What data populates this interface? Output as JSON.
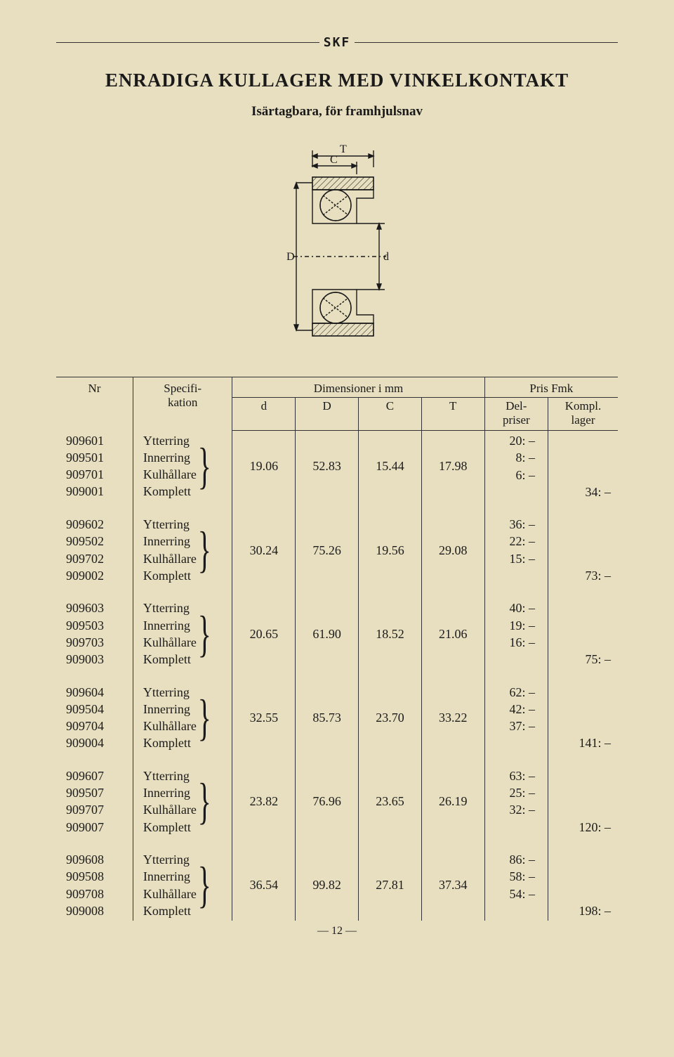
{
  "logo": "SKF",
  "title": "ENRADIGA KULLAGER MED VINKELKONTAKT",
  "subtitle": "Isärtagbara, för framhjulsnav",
  "header": {
    "nr": "Nr",
    "spec": "Specifi-\nkation",
    "dim": "Dimensioner i mm",
    "d": "d",
    "D": "D",
    "C": "C",
    "T": "T",
    "pris": "Pris Fmk",
    "del": "Del-\npriser",
    "kompl": "Kompl.\nlager"
  },
  "spec_labels": [
    "Ytterring",
    "Innerring",
    "Kulhållare",
    "Komplett"
  ],
  "groups": [
    {
      "nrs": [
        "909601",
        "909501",
        "909701",
        "909001"
      ],
      "d": "19.06",
      "D": "52.83",
      "C": "15.44",
      "T": "17.98",
      "del": [
        "20: –",
        "8: –",
        "6: –"
      ],
      "kompl": "34: –"
    },
    {
      "nrs": [
        "909602",
        "909502",
        "909702",
        "909002"
      ],
      "d": "30.24",
      "D": "75.26",
      "C": "19.56",
      "T": "29.08",
      "del": [
        "36: –",
        "22: –",
        "15: –"
      ],
      "kompl": "73: –"
    },
    {
      "nrs": [
        "909603",
        "909503",
        "909703",
        "909003"
      ],
      "d": "20.65",
      "D": "61.90",
      "C": "18.52",
      "T": "21.06",
      "del": [
        "40: –",
        "19: –",
        "16: –"
      ],
      "kompl": "75: –"
    },
    {
      "nrs": [
        "909604",
        "909504",
        "909704",
        "909004"
      ],
      "d": "32.55",
      "D": "85.73",
      "C": "23.70",
      "T": "33.22",
      "del": [
        "62: –",
        "42: –",
        "37: –"
      ],
      "kompl": "141: –"
    },
    {
      "nrs": [
        "909607",
        "909507",
        "909707",
        "909007"
      ],
      "d": "23.82",
      "D": "76.96",
      "C": "23.65",
      "T": "26.19",
      "del": [
        "63: –",
        "25: –",
        "32: –"
      ],
      "kompl": "120: –"
    },
    {
      "nrs": [
        "909608",
        "909508",
        "909708",
        "909008"
      ],
      "d": "36.54",
      "D": "99.82",
      "C": "27.81",
      "T": "37.34",
      "del": [
        "86: –",
        "58: –",
        "54: –"
      ],
      "kompl": "198: –"
    }
  ],
  "pagenum": "— 12 —",
  "diagram": {
    "labels": {
      "T": "T",
      "C": "C",
      "D": "D",
      "d": "d"
    },
    "stroke": "#1a1a1a",
    "hatch": "#1a1a1a",
    "centerline_dash": "4 3 1 3"
  }
}
